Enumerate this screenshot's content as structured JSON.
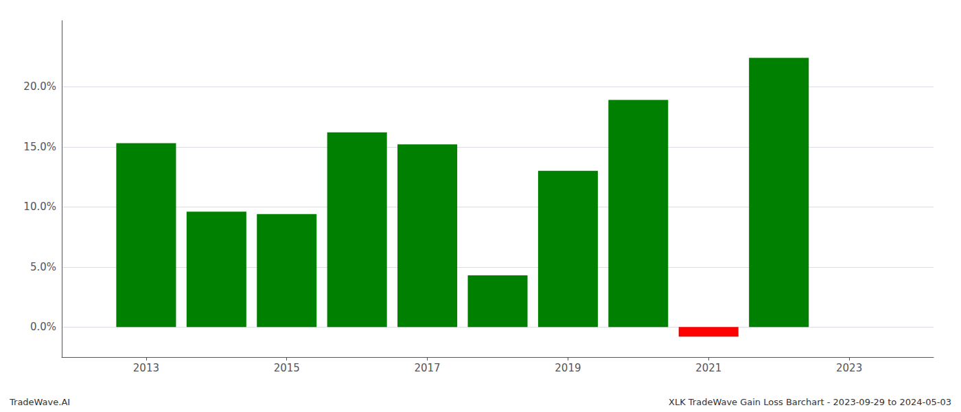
{
  "chart_data": {
    "type": "bar",
    "x": [
      2013,
      2014,
      2015,
      2016,
      2017,
      2018,
      2019,
      2020,
      2021,
      2022
    ],
    "values": [
      0.153,
      0.096,
      0.094,
      0.162,
      0.152,
      0.043,
      0.13,
      0.189,
      -0.008,
      0.224
    ],
    "colors": [
      "#008000",
      "#008000",
      "#008000",
      "#008000",
      "#008000",
      "#008000",
      "#008000",
      "#008000",
      "#ff0000",
      "#008000"
    ],
    "xlim": [
      2011.8,
      2024.2
    ],
    "xticks": [
      2013,
      2015,
      2017,
      2019,
      2021,
      2023
    ],
    "ylim": [
      -0.025,
      0.255
    ],
    "yticks": [
      {
        "value": 0.0,
        "label": "0.0%"
      },
      {
        "value": 0.05,
        "label": "5.0%"
      },
      {
        "value": 0.1,
        "label": "10.0%"
      },
      {
        "value": 0.15,
        "label": "15.0%"
      },
      {
        "value": 0.2,
        "label": "20.0%"
      }
    ],
    "grid": true,
    "annotations": [
      "TradeWave.AI",
      "XLK TradeWave Gain Loss Barchart - 2023-09-29 to 2024-05-03"
    ]
  }
}
